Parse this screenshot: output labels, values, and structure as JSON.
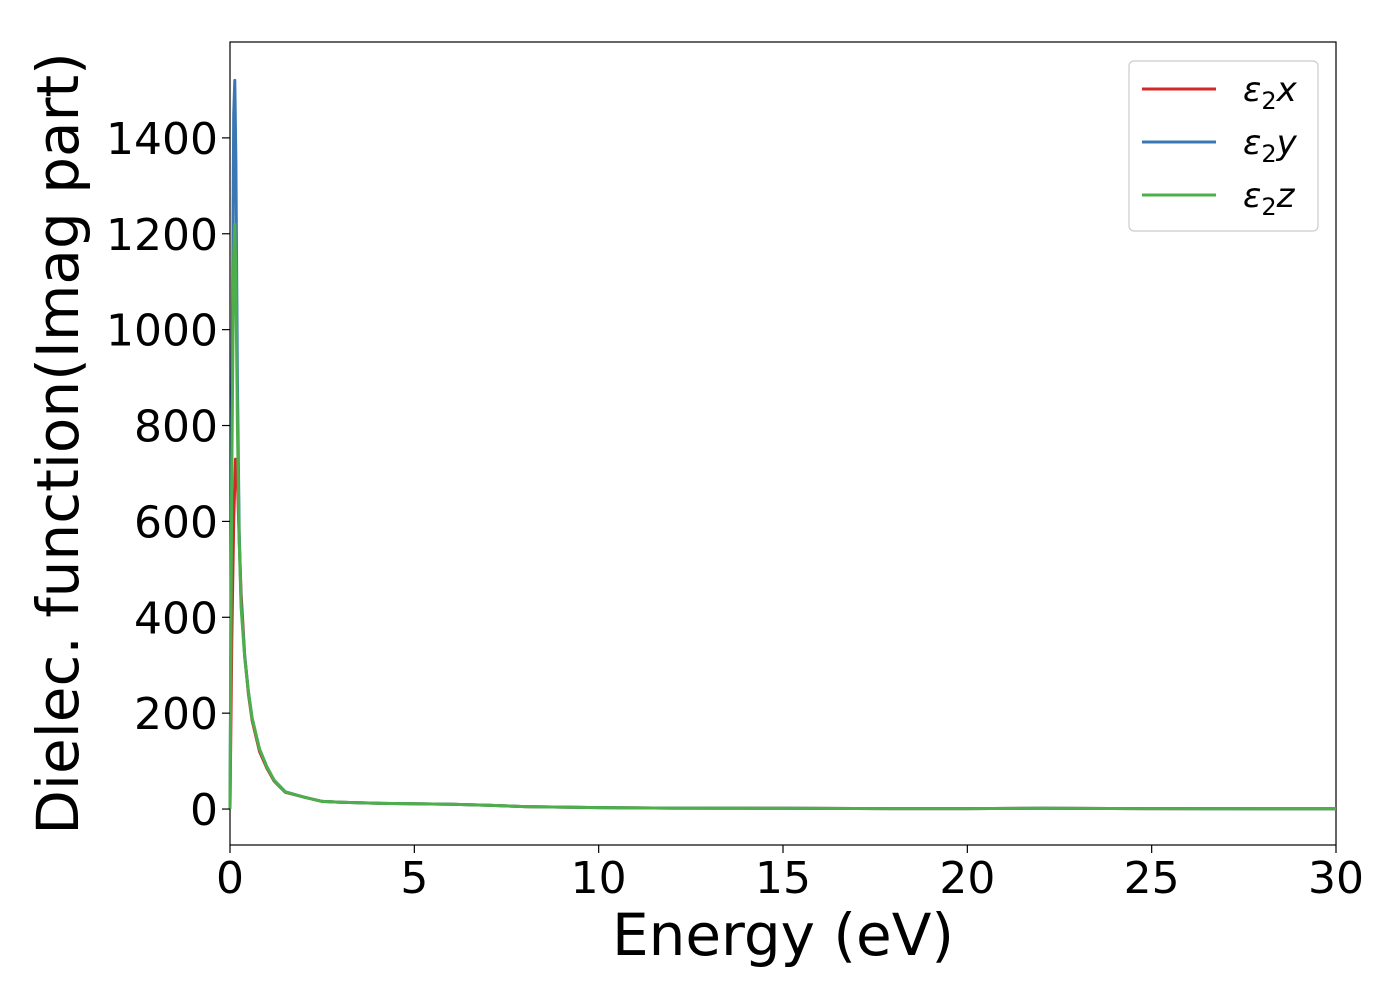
{
  "chart_data": {
    "type": "line",
    "xlabel": "Energy (eV)",
    "ylabel": "Dielec. function(Imag part)",
    "xlim": [
      0,
      30
    ],
    "ylim": [
      -75,
      1600
    ],
    "xticks": [
      0,
      5,
      10,
      15,
      20,
      25,
      30
    ],
    "yticks": [
      0,
      200,
      400,
      600,
      800,
      1000,
      1200,
      1400
    ],
    "legend_position": "top-right",
    "grid": false,
    "series": [
      {
        "name": "ε₂x",
        "legend": {
          "base": "ε",
          "sub": "2",
          "var": "x"
        },
        "color": "#d62728",
        "x": [
          0,
          0.05,
          0.1,
          0.15,
          0.2,
          0.25,
          0.3,
          0.4,
          0.5,
          0.6,
          0.8,
          1.0,
          1.2,
          1.5,
          2.0,
          2.5,
          3.0,
          3.5,
          4.0,
          5.0,
          6.0,
          7.0,
          8.0,
          9.0,
          10.0,
          12.0,
          15.0,
          18.0,
          20.0,
          22.0,
          25.0,
          28.0,
          30.0
        ],
        "values": [
          0,
          350,
          600,
          730,
          690,
          560,
          450,
          320,
          240,
          185,
          120,
          85,
          58,
          35,
          25,
          16,
          14,
          13,
          12,
          11,
          10,
          8,
          5,
          4,
          3,
          2,
          1.5,
          1,
          1,
          1.5,
          1,
          0.8,
          0.5
        ]
      },
      {
        "name": "ε₂y",
        "legend": {
          "base": "ε",
          "sub": "2",
          "var": "y"
        },
        "color": "#3a78b5",
        "x": [
          0,
          0.05,
          0.1,
          0.13,
          0.16,
          0.2,
          0.25,
          0.3,
          0.4,
          0.5,
          0.6,
          0.8,
          1.0,
          1.2,
          1.5,
          2.0,
          2.5,
          3.0,
          3.5,
          4.0,
          5.0,
          6.0,
          7.0,
          8.0,
          9.0,
          10.0,
          12.0,
          15.0,
          18.0,
          20.0,
          22.0,
          25.0,
          28.0,
          30.0
        ],
        "values": [
          0,
          800,
          1450,
          1520,
          1350,
          900,
          580,
          430,
          320,
          245,
          190,
          125,
          88,
          60,
          36,
          25,
          16,
          14,
          13,
          12,
          11,
          10,
          8,
          5,
          4,
          3,
          2,
          1.5,
          1,
          1,
          1.5,
          1,
          0.8,
          0.5
        ]
      },
      {
        "name": "ε₂z",
        "legend": {
          "base": "ε",
          "sub": "2",
          "var": "z"
        },
        "color": "#4daf4a",
        "x": [
          0,
          0.05,
          0.1,
          0.13,
          0.16,
          0.2,
          0.25,
          0.3,
          0.4,
          0.5,
          0.6,
          0.8,
          1.0,
          1.2,
          1.5,
          2.0,
          2.5,
          3.0,
          3.5,
          4.0,
          5.0,
          6.0,
          7.0,
          8.0,
          9.0,
          10.0,
          12.0,
          15.0,
          18.0,
          20.0,
          22.0,
          25.0,
          28.0,
          30.0
        ],
        "values": [
          0,
          700,
          1150,
          1220,
          1100,
          800,
          560,
          420,
          315,
          245,
          190,
          125,
          88,
          60,
          36,
          25,
          16,
          14,
          13,
          12,
          11,
          10,
          8,
          5,
          4,
          3,
          2,
          1.5,
          1,
          1,
          1.5,
          1,
          0.8,
          0.5
        ]
      }
    ]
  }
}
